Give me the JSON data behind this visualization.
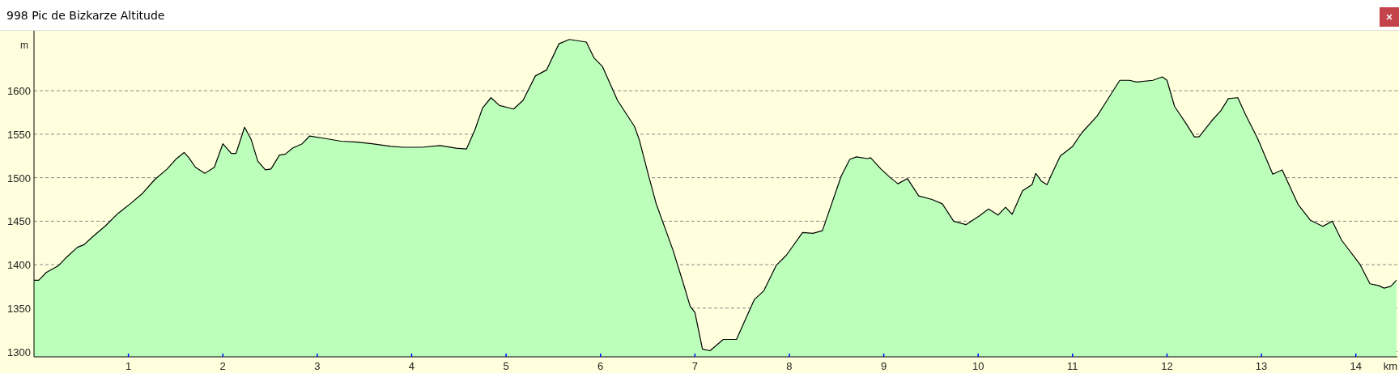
{
  "chart_data": {
    "type": "area",
    "title": "998 Pic de Bizkarze Altitude",
    "xlabel": "km",
    "ylabel": "m",
    "xlim": [
      0,
      14.44
    ],
    "xticks": [
      1,
      2,
      3,
      4,
      5,
      6,
      7,
      8,
      9,
      10,
      11,
      12,
      13,
      14
    ],
    "ylim": [
      1294,
      1669
    ],
    "yticks": [
      1300,
      1350,
      1400,
      1450,
      1500,
      1550,
      1600
    ],
    "grid": "y",
    "series": [
      {
        "color": "#bbffbb",
        "x": [
          0,
          0.05,
          0.13,
          0.26,
          0.33,
          0.46,
          0.53,
          0.62,
          0.76,
          0.89,
          1.02,
          1.15,
          1.28,
          1.41,
          1.5,
          1.59,
          1.64,
          1.71,
          1.81,
          1.91,
          2.0,
          2.09,
          2.14,
          2.23,
          2.3,
          2.37,
          2.45,
          2.51,
          2.6,
          2.66,
          2.74,
          2.84,
          2.92,
          3.09,
          3.25,
          3.42,
          3.58,
          3.78,
          3.91,
          4.11,
          4.3,
          4.47,
          4.58,
          4.67,
          4.75,
          4.84,
          4.93,
          5.08,
          5.18,
          5.31,
          5.43,
          5.56,
          5.67,
          5.85,
          5.93,
          6.02,
          6.18,
          6.36,
          6.41,
          6.51,
          6.59,
          6.77,
          6.87,
          6.95,
          7.0,
          7.08,
          7.16,
          7.3,
          7.44,
          7.63,
          7.73,
          7.86,
          7.97,
          8.14,
          8.25,
          8.35,
          8.55,
          8.64,
          8.71,
          8.83,
          8.86,
          8.97,
          9.07,
          9.15,
          9.25,
          9.37,
          9.51,
          9.62,
          9.74,
          9.87,
          10.01,
          10.11,
          10.21,
          10.29,
          10.36,
          10.47,
          10.57,
          10.61,
          10.67,
          10.73,
          10.77,
          10.87,
          11.0,
          11.1,
          11.26,
          11.36,
          11.5,
          11.6,
          11.68,
          11.85,
          11.95,
          12.0,
          12.08,
          12.21,
          12.29,
          12.34,
          12.47,
          12.57,
          12.65,
          12.75,
          12.83,
          12.96,
          13.12,
          13.22,
          13.39,
          13.52,
          13.65,
          13.75,
          13.85,
          14.04,
          14.15,
          14.24,
          14.3,
          14.37,
          14.43
        ],
        "values": [
          1382,
          1382,
          1391,
          1399,
          1407,
          1420,
          1423,
          1432,
          1445,
          1459,
          1470,
          1482,
          1498,
          1510,
          1521,
          1529,
          1523,
          1512,
          1505,
          1512,
          1539,
          1528,
          1528,
          1558,
          1544,
          1519,
          1509,
          1510,
          1526,
          1527,
          1534,
          1539,
          1548,
          1545,
          1542,
          1541,
          1539,
          1536,
          1535,
          1535,
          1537,
          1534,
          1533,
          1555,
          1580,
          1592,
          1583,
          1579,
          1589,
          1617,
          1624,
          1654,
          1659,
          1656,
          1638,
          1628,
          1589,
          1559,
          1544,
          1502,
          1470,
          1416,
          1381,
          1352,
          1345,
          1303,
          1301,
          1314,
          1314,
          1360,
          1370,
          1399,
          1411,
          1437,
          1436,
          1439,
          1502,
          1521,
          1524,
          1522,
          1523,
          1510,
          1500,
          1493,
          1499,
          1479,
          1475,
          1470,
          1450,
          1446,
          1456,
          1464,
          1457,
          1466,
          1458,
          1485,
          1492,
          1505,
          1496,
          1492,
          1502,
          1525,
          1536,
          1552,
          1571,
          1588,
          1612,
          1612,
          1610,
          1612,
          1616,
          1612,
          1582,
          1561,
          1547,
          1547,
          1565,
          1577,
          1591,
          1592,
          1573,
          1545,
          1504,
          1509,
          1469,
          1451,
          1444,
          1450,
          1428,
          1401,
          1378,
          1376,
          1373,
          1375,
          1382
        ]
      }
    ]
  }
}
